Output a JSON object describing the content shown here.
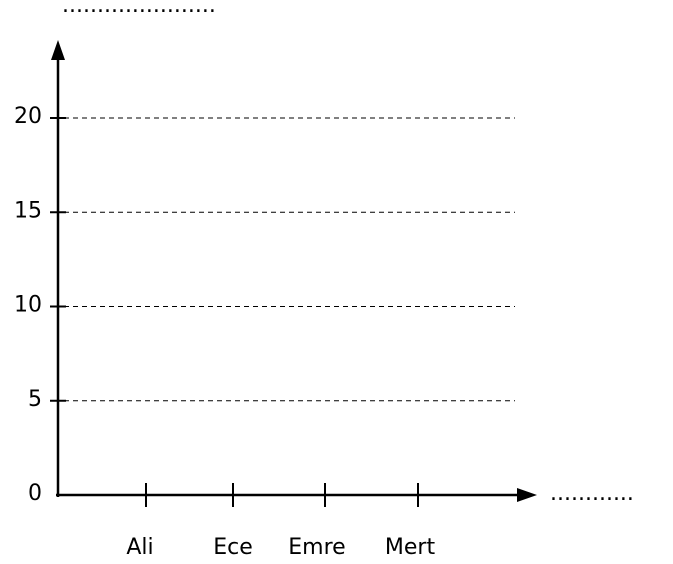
{
  "chart_data": {
    "type": "bar",
    "title": "......................",
    "x_label": "............",
    "categories": [
      "Ali",
      "Ece",
      "Emre",
      "Mert"
    ],
    "ylim": [
      0,
      20
    ],
    "yticks": [
      0,
      5,
      10,
      15,
      20
    ],
    "grid": true
  }
}
